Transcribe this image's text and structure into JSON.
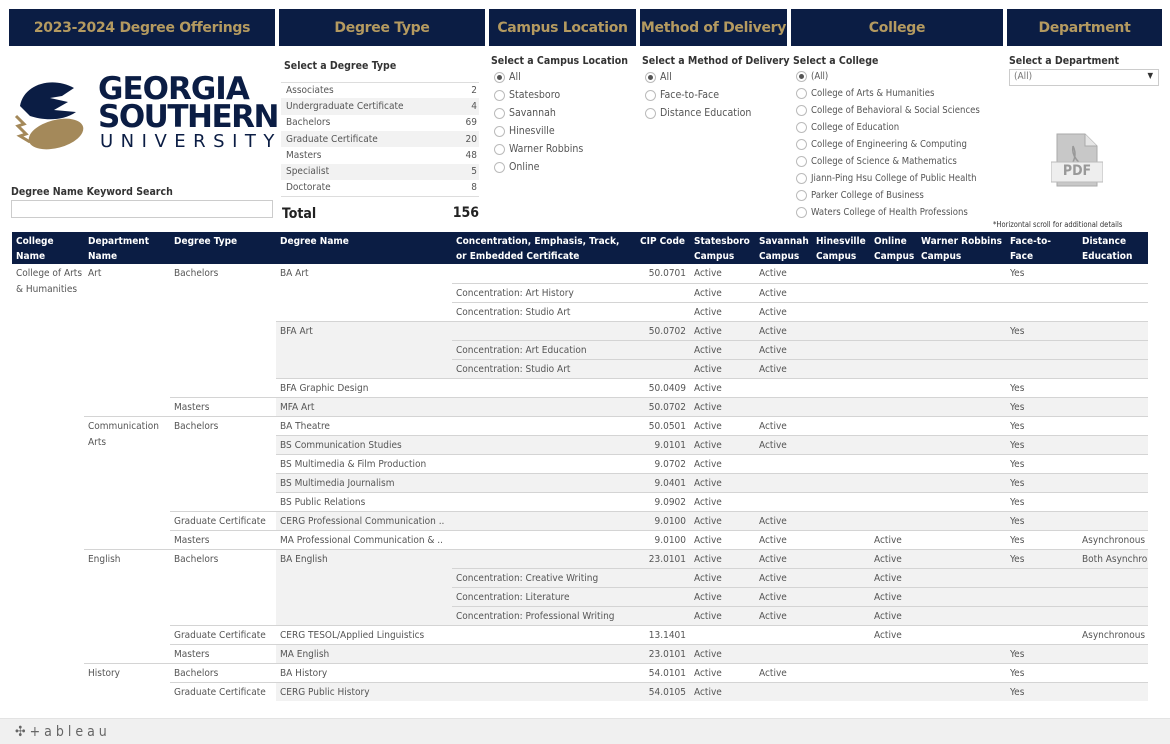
{
  "headers": {
    "title": "2023-2024 Degree Offerings",
    "degree_type": "Degree Type",
    "campus": "Campus Location",
    "delivery": "Method of Delivery",
    "college": "College",
    "department": "Department"
  },
  "logo": {
    "line1": "GEORGIA",
    "line2": "SOUTHERN",
    "line3": "UNIVERSITY",
    "colors": {
      "navy": "#0b1d44",
      "gold": "#a4895a"
    }
  },
  "search": {
    "label": "Degree Name Keyword Search",
    "value": ""
  },
  "degree_type_filter": {
    "label": "Select a Degree Type",
    "items": [
      {
        "name": "Associates",
        "count": "2"
      },
      {
        "name": "Undergraduate Certificate",
        "count": "4"
      },
      {
        "name": "Bachelors",
        "count": "69"
      },
      {
        "name": "Graduate Certificate",
        "count": "20"
      },
      {
        "name": "Masters",
        "count": "48"
      },
      {
        "name": "Specialist",
        "count": "5"
      },
      {
        "name": "Doctorate",
        "count": "8"
      }
    ],
    "total_label": "Total",
    "total": "156"
  },
  "campus_filter": {
    "label": "Select a Campus Location",
    "options": [
      "All",
      "Statesboro",
      "Savannah",
      "Hinesville",
      "Warner Robbins",
      "Online"
    ],
    "selected": 0
  },
  "delivery_filter": {
    "label": "Select a Method of Delivery",
    "options": [
      "All",
      "Face-to-Face",
      "Distance Education"
    ],
    "selected": 0
  },
  "college_filter": {
    "label": "Select a College",
    "options": [
      "(All)",
      "College of Arts & Humanities",
      "College of Behavioral & Social Sciences",
      "College of Education",
      "College of Engineering & Computing",
      "College of Science & Mathematics",
      "Jiann-Ping Hsu College of Public Health",
      "Parker College of Business",
      "Waters College of Health Professions"
    ],
    "selected": 0
  },
  "department_filter": {
    "label": "Select a Department",
    "value": "(All)"
  },
  "pdf": {
    "label": "PDF",
    "icon": "pdf-icon"
  },
  "scroll_note": "*Horizontal scroll for additional details",
  "table": {
    "columns": [
      "College Name",
      "Department Name",
      "Degree Type",
      "Degree Name",
      "Concentration, Emphasis, Track, or Embedded Certificate",
      "CIP Code",
      "Statesboro Campus",
      "Savannah Campus",
      "Hinesville Campus",
      "Online Campus",
      "Warner Robbins Campus",
      "Face-to-Face Delivery",
      "Distance Education"
    ],
    "rows": [
      [
        "College of Arts & Humanities",
        "Art",
        "Bachelors",
        "BA Art",
        "",
        "50.0701",
        "Active",
        "Active",
        "",
        "",
        "",
        "Yes",
        ""
      ],
      [
        "",
        "",
        "",
        "",
        "Concentration: Art History",
        "",
        "Active",
        "Active",
        "",
        "",
        "",
        "",
        ""
      ],
      [
        "",
        "",
        "",
        "",
        "Concentration: Studio Art",
        "",
        "Active",
        "Active",
        "",
        "",
        "",
        "",
        ""
      ],
      [
        "",
        "",
        "",
        "BFA Art",
        "",
        "50.0702",
        "Active",
        "Active",
        "",
        "",
        "",
        "Yes",
        ""
      ],
      [
        "",
        "",
        "",
        "",
        "Concentration: Art Education",
        "",
        "Active",
        "Active",
        "",
        "",
        "",
        "",
        ""
      ],
      [
        "",
        "",
        "",
        "",
        "Concentration: Studio Art",
        "",
        "Active",
        "Active",
        "",
        "",
        "",
        "",
        ""
      ],
      [
        "",
        "",
        "",
        "BFA Graphic Design",
        "",
        "50.0409",
        "Active",
        "",
        "",
        "",
        "",
        "Yes",
        ""
      ],
      [
        "",
        "",
        "Masters",
        "MFA Art",
        "",
        "50.0702",
        "Active",
        "",
        "",
        "",
        "",
        "Yes",
        ""
      ],
      [
        "",
        "Communication Arts",
        "Bachelors",
        "BA Theatre",
        "",
        "50.0501",
        "Active",
        "Active",
        "",
        "",
        "",
        "Yes",
        ""
      ],
      [
        "",
        "",
        "",
        "BS Communication Studies",
        "",
        "9.0101",
        "Active",
        "Active",
        "",
        "",
        "",
        "Yes",
        ""
      ],
      [
        "",
        "",
        "",
        "BS Multimedia & Film Production",
        "",
        "9.0702",
        "Active",
        "",
        "",
        "",
        "",
        "Yes",
        ""
      ],
      [
        "",
        "",
        "",
        "BS Multimedia Journalism",
        "",
        "9.0401",
        "Active",
        "",
        "",
        "",
        "",
        "Yes",
        ""
      ],
      [
        "",
        "",
        "",
        "BS Public Relations",
        "",
        "9.0902",
        "Active",
        "",
        "",
        "",
        "",
        "Yes",
        ""
      ],
      [
        "",
        "",
        "Graduate Certificate",
        "CERG Professional Communication ..",
        "",
        "9.0100",
        "Active",
        "Active",
        "",
        "",
        "",
        "Yes",
        ""
      ],
      [
        "",
        "",
        "Masters",
        "MA Professional Communication & ..",
        "",
        "9.0100",
        "Active",
        "Active",
        "",
        "Active",
        "",
        "Yes",
        "Asynchronous"
      ],
      [
        "",
        "English",
        "Bachelors",
        "BA English",
        "",
        "23.0101",
        "Active",
        "Active",
        "",
        "Active",
        "",
        "Yes",
        "Both Asynchronous"
      ],
      [
        "",
        "",
        "",
        "",
        "Concentration: Creative Writing",
        "",
        "Active",
        "Active",
        "",
        "Active",
        "",
        "",
        ""
      ],
      [
        "",
        "",
        "",
        "",
        "Concentration: Literature",
        "",
        "Active",
        "Active",
        "",
        "Active",
        "",
        "",
        ""
      ],
      [
        "",
        "",
        "",
        "",
        "Concentration: Professional Writing",
        "",
        "Active",
        "Active",
        "",
        "Active",
        "",
        "",
        ""
      ],
      [
        "",
        "",
        "Graduate Certificate",
        "CERG TESOL/Applied Linguistics",
        "",
        "13.1401",
        "",
        "",
        "",
        "Active",
        "",
        "",
        "Asynchronous"
      ],
      [
        "",
        "",
        "Masters",
        "MA English",
        "",
        "23.0101",
        "Active",
        "",
        "",
        "",
        "",
        "Yes",
        ""
      ],
      [
        "",
        "History",
        "Bachelors",
        "BA History",
        "",
        "54.0101",
        "Active",
        "Active",
        "",
        "",
        "",
        "Yes",
        ""
      ],
      [
        "",
        "",
        "Graduate Certificate",
        "CERG Public History",
        "",
        "54.0105",
        "Active",
        "",
        "",
        "",
        "",
        "Yes",
        ""
      ]
    ]
  },
  "footer": {
    "brand": "+ableau"
  }
}
